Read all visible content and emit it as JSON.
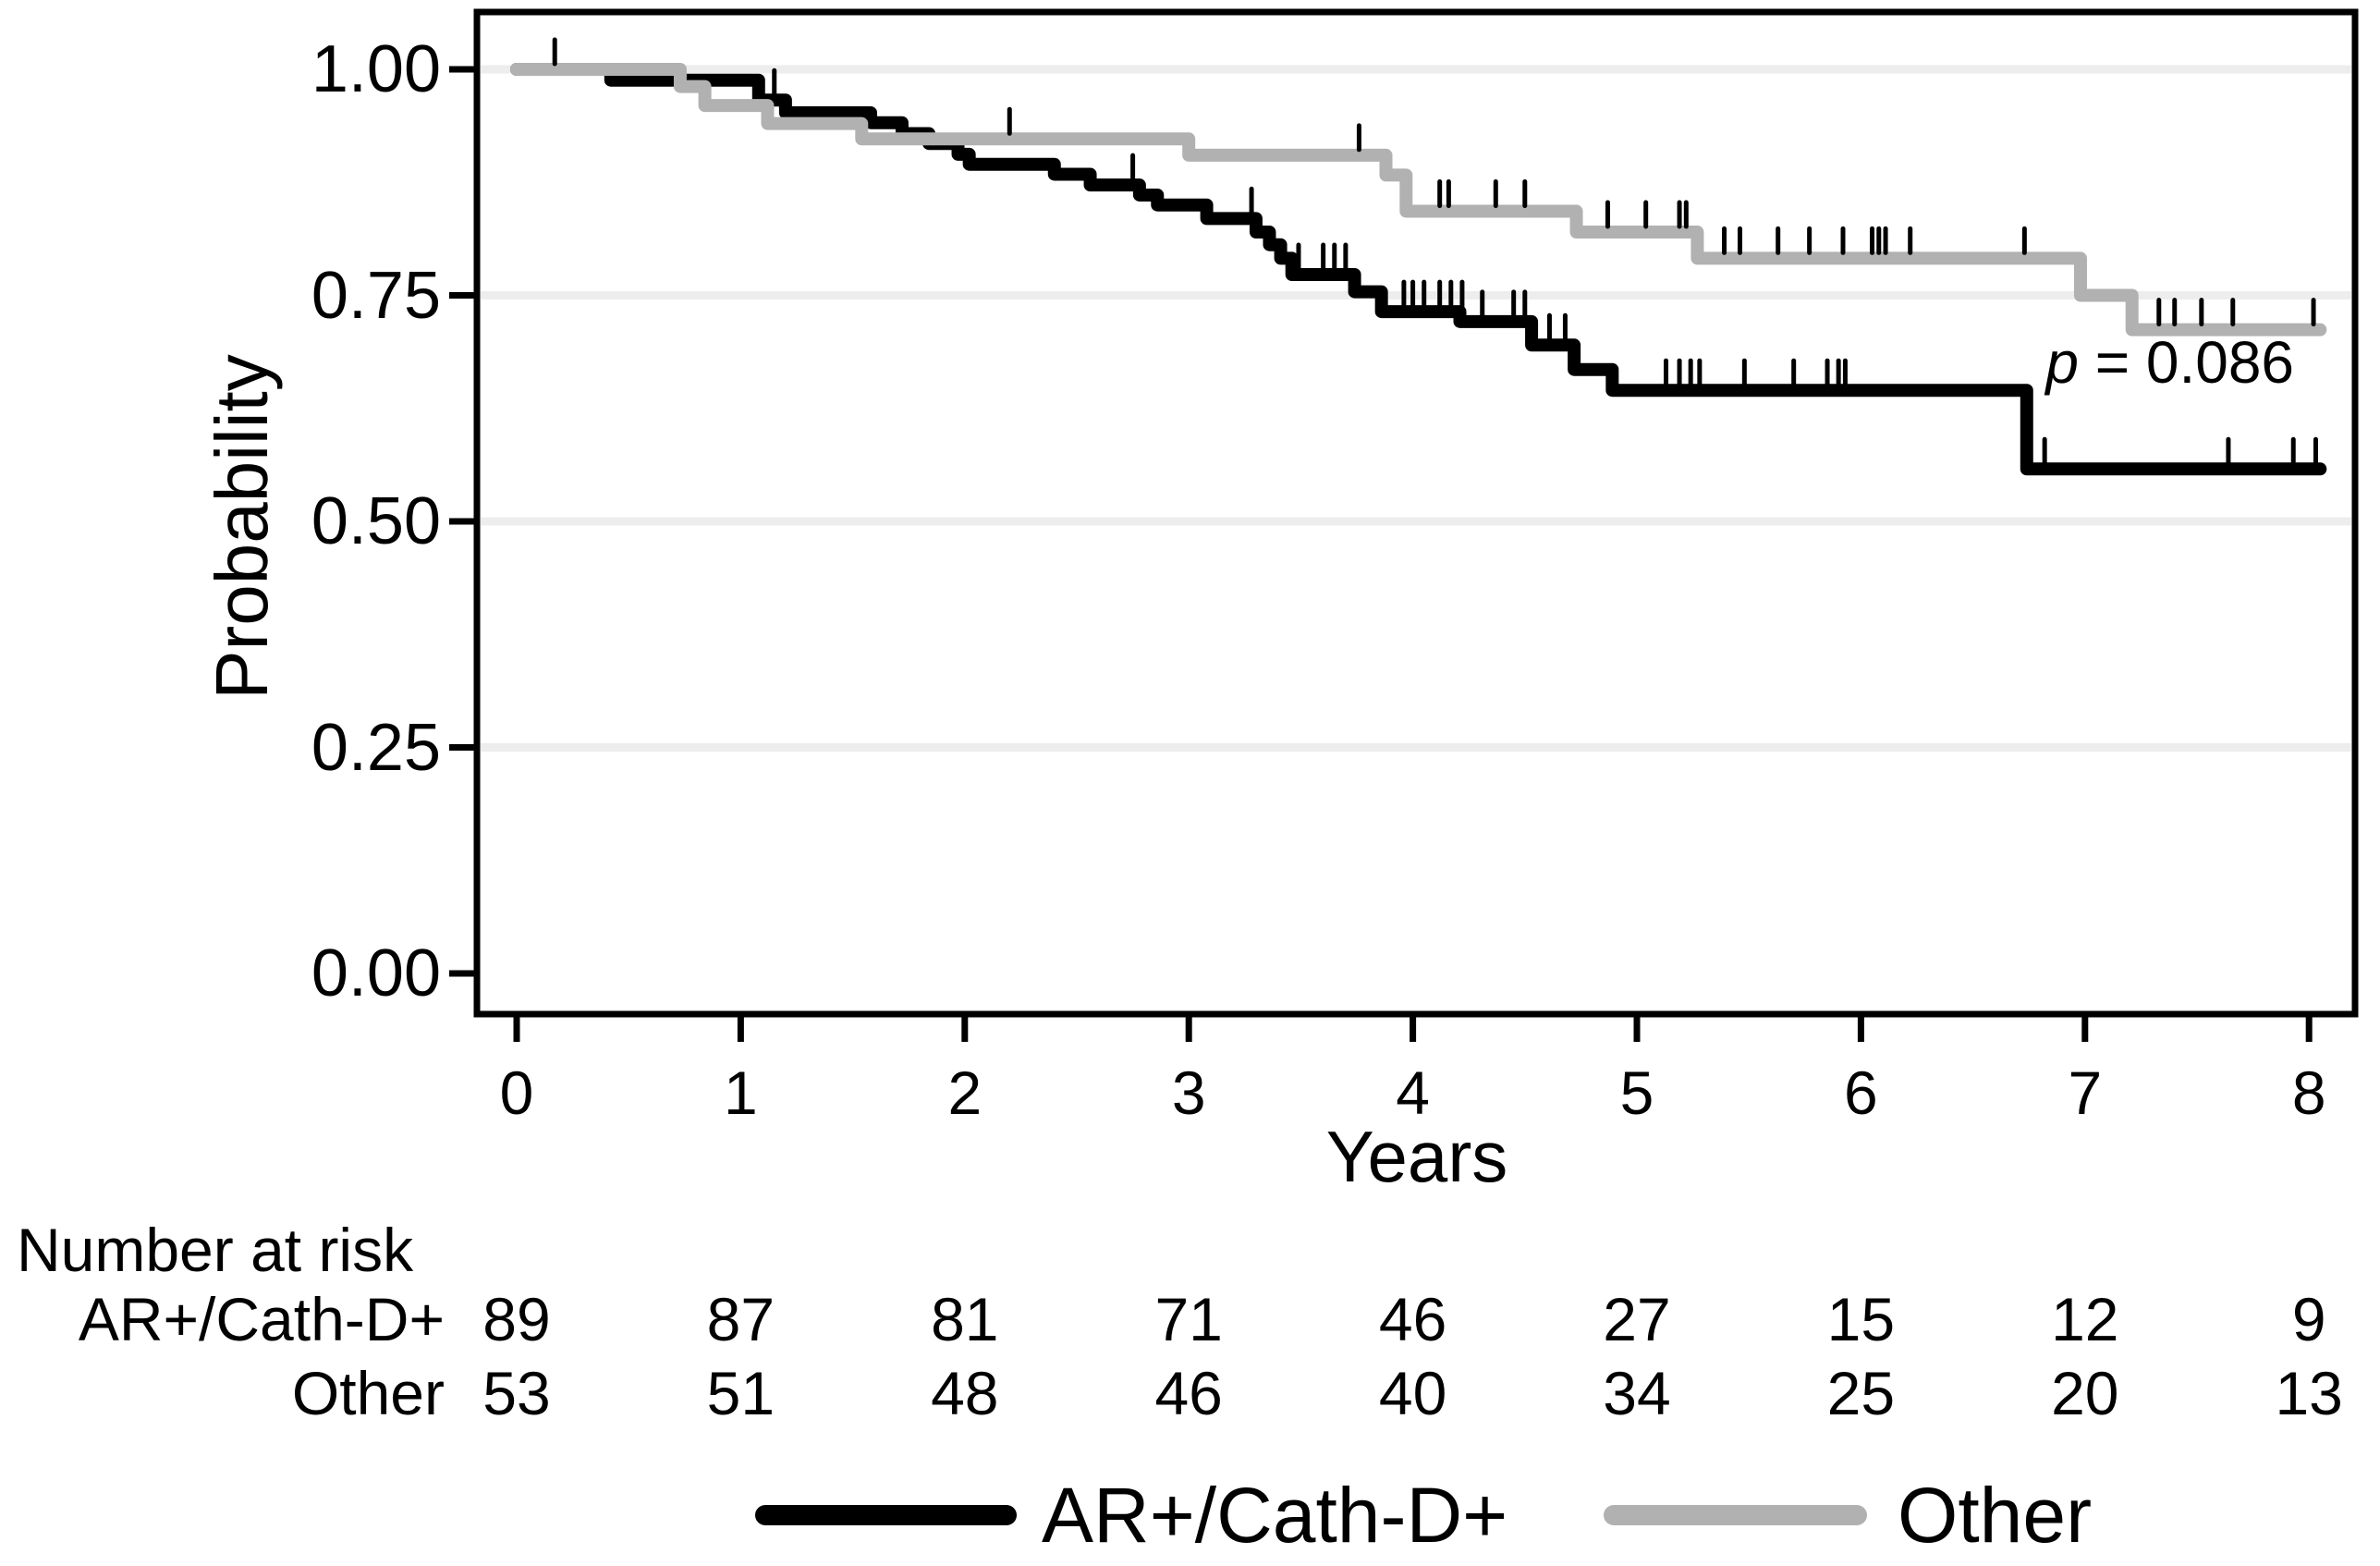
{
  "figure": {
    "x_axis": {
      "label": "Years",
      "ticks": [
        0,
        1,
        2,
        3,
        4,
        5,
        6,
        7,
        8
      ]
    },
    "y_axis": {
      "label": "Probability",
      "ticks": [
        "1.00",
        "0.75",
        "0.50",
        "0.25",
        "0.00"
      ],
      "tick_values": [
        1.0,
        0.75,
        0.5,
        0.25,
        0.0
      ]
    },
    "p_value": {
      "symbol": "p",
      "rest": " = 0.086"
    }
  },
  "chart_data": {
    "type": "line",
    "subtype": "kaplan-meier-step",
    "title": "",
    "xlabel": "Years",
    "ylabel": "Probability",
    "xlim": [
      0,
      8.2
    ],
    "ylim": [
      0,
      1.0
    ],
    "gridlines_y": [
      0.25,
      0.5,
      0.75,
      1.0
    ],
    "grid": true,
    "legend_position": "bottom",
    "annotation": "p = 0.086",
    "series": [
      {
        "name": "AR+/Cath-D+",
        "color": "#000000",
        "end_time": 8.05,
        "points": [
          [
            0,
            1.0
          ],
          [
            0.42,
            0.988
          ],
          [
            1.08,
            0.966
          ],
          [
            1.2,
            0.952
          ],
          [
            1.58,
            0.941
          ],
          [
            1.72,
            0.929
          ],
          [
            1.84,
            0.918
          ],
          [
            1.97,
            0.906
          ],
          [
            2.02,
            0.895
          ],
          [
            2.4,
            0.884
          ],
          [
            2.56,
            0.872
          ],
          [
            2.78,
            0.861
          ],
          [
            2.86,
            0.85
          ],
          [
            3.08,
            0.835
          ],
          [
            3.3,
            0.82
          ],
          [
            3.36,
            0.806
          ],
          [
            3.41,
            0.791
          ],
          [
            3.46,
            0.773
          ],
          [
            3.74,
            0.754
          ],
          [
            3.86,
            0.732
          ],
          [
            4.21,
            0.721
          ],
          [
            4.53,
            0.695
          ],
          [
            4.72,
            0.668
          ],
          [
            4.89,
            0.645
          ],
          [
            6.74,
            0.558
          ]
        ],
        "censor_marks": [
          [
            1.15,
            0.966
          ],
          [
            2.75,
            0.872
          ],
          [
            3.28,
            0.835
          ],
          [
            3.49,
            0.773
          ],
          [
            3.6,
            0.773
          ],
          [
            3.65,
            0.773
          ],
          [
            3.7,
            0.773
          ],
          [
            3.96,
            0.732
          ],
          [
            4.0,
            0.732
          ],
          [
            4.05,
            0.732
          ],
          [
            4.12,
            0.732
          ],
          [
            4.17,
            0.732
          ],
          [
            4.22,
            0.732
          ],
          [
            4.31,
            0.721
          ],
          [
            4.45,
            0.721
          ],
          [
            4.5,
            0.721
          ],
          [
            4.61,
            0.695
          ],
          [
            4.68,
            0.695
          ],
          [
            5.13,
            0.645
          ],
          [
            5.19,
            0.645
          ],
          [
            5.24,
            0.645
          ],
          [
            5.28,
            0.645
          ],
          [
            5.48,
            0.645
          ],
          [
            5.7,
            0.645
          ],
          [
            5.85,
            0.645
          ],
          [
            5.9,
            0.645
          ],
          [
            5.93,
            0.645
          ],
          [
            6.82,
            0.558
          ],
          [
            7.64,
            0.558
          ],
          [
            7.93,
            0.558
          ],
          [
            8.03,
            0.558
          ]
        ]
      },
      {
        "name": "Other",
        "color": "#b1b1b1",
        "end_time": 8.05,
        "points": [
          [
            0,
            1.0
          ],
          [
            0.73,
            0.981
          ],
          [
            0.84,
            0.96
          ],
          [
            1.12,
            0.94
          ],
          [
            1.54,
            0.923
          ],
          [
            3.0,
            0.905
          ],
          [
            3.88,
            0.883
          ],
          [
            3.97,
            0.843
          ],
          [
            4.73,
            0.82
          ],
          [
            5.27,
            0.791
          ],
          [
            6.98,
            0.75
          ],
          [
            7.21,
            0.712
          ]
        ],
        "censor_marks": [
          [
            0.17,
            1.0
          ],
          [
            2.2,
            0.923
          ],
          [
            3.76,
            0.905
          ],
          [
            4.12,
            0.843
          ],
          [
            4.16,
            0.843
          ],
          [
            4.37,
            0.843
          ],
          [
            4.5,
            0.843
          ],
          [
            4.87,
            0.82
          ],
          [
            5.04,
            0.82
          ],
          [
            5.19,
            0.82
          ],
          [
            5.22,
            0.82
          ],
          [
            5.39,
            0.791
          ],
          [
            5.46,
            0.791
          ],
          [
            5.63,
            0.791
          ],
          [
            5.77,
            0.791
          ],
          [
            5.92,
            0.791
          ],
          [
            6.05,
            0.791
          ],
          [
            6.08,
            0.791
          ],
          [
            6.11,
            0.791
          ],
          [
            6.22,
            0.791
          ],
          [
            6.73,
            0.791
          ],
          [
            7.33,
            0.712
          ],
          [
            7.4,
            0.712
          ],
          [
            7.52,
            0.712
          ],
          [
            7.66,
            0.712
          ],
          [
            8.02,
            0.712
          ]
        ]
      }
    ]
  },
  "risk_table": {
    "title": "Number at risk",
    "time_points": [
      0,
      1,
      2,
      3,
      4,
      5,
      6,
      7,
      8
    ],
    "rows": [
      {
        "label": "AR+/Cath-D+",
        "values": [
          89,
          87,
          81,
          71,
          46,
          27,
          15,
          12,
          9
        ]
      },
      {
        "label": "Other",
        "values": [
          53,
          51,
          48,
          46,
          40,
          34,
          25,
          20,
          13
        ]
      }
    ]
  },
  "legend": {
    "entries": [
      {
        "label": "AR+/Cath-D+",
        "color": "#000000"
      },
      {
        "label": "Other",
        "color": "#b1b1b1"
      }
    ]
  },
  "colors": {
    "accent_black": "#000000",
    "accent_gray": "#b1b1b1",
    "gridline": "#ededed",
    "censor_tick": "#000000",
    "background": "#ffffff",
    "text": "#000000"
  }
}
